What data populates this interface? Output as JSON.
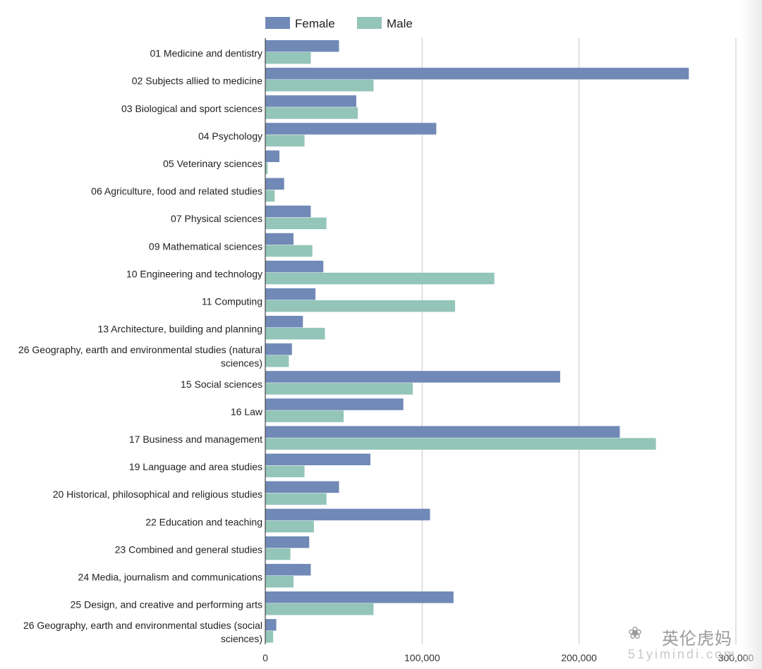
{
  "chart_data": {
    "type": "bar",
    "orientation": "horizontal",
    "title": "",
    "xlabel": "",
    "ylabel": "",
    "xlim": [
      0,
      300000
    ],
    "x_ticks": [
      0,
      100000,
      200000,
      300000
    ],
    "x_tick_labels": [
      "0",
      "100,000",
      "200,000",
      "300,000"
    ],
    "grid": true,
    "legend_position": "top-left",
    "categories": [
      "01 Medicine and dentistry",
      "02 Subjects allied to medicine",
      "03 Biological and sport sciences",
      "04 Psychology",
      "05 Veterinary sciences",
      "06 Agriculture, food and related studies",
      "07 Physical sciences",
      "09 Mathematical sciences",
      "10 Engineering and technology",
      "11 Computing",
      "13 Architecture, building and planning",
      "26 Geography, earth and environmental studies (natural sciences)",
      "15 Social sciences",
      "16 Law",
      "17 Business and management",
      "19 Language and area studies",
      "20 Historical, philosophical and religious studies",
      "22 Education and teaching",
      "23 Combined and general studies",
      "24 Media, journalism and communications",
      "25 Design, and creative and performing arts",
      "26 Geography, earth and environmental studies (social sciences)"
    ],
    "series": [
      {
        "name": "Female",
        "color": "#7089b7",
        "values": [
          47000,
          270000,
          58000,
          109000,
          9000,
          12000,
          29000,
          18000,
          37000,
          32000,
          24000,
          17000,
          188000,
          88000,
          226000,
          67000,
          47000,
          105000,
          28000,
          29000,
          120000,
          7000
        ]
      },
      {
        "name": "Male",
        "color": "#93c5b8",
        "values": [
          29000,
          69000,
          59000,
          25000,
          1500,
          6000,
          39000,
          30000,
          146000,
          121000,
          38000,
          15000,
          94000,
          50000,
          249000,
          25000,
          39000,
          31000,
          16000,
          18000,
          69000,
          5000
        ]
      }
    ]
  },
  "watermark": {
    "name": "英伦虎妈",
    "url": "51yimindi.com"
  }
}
